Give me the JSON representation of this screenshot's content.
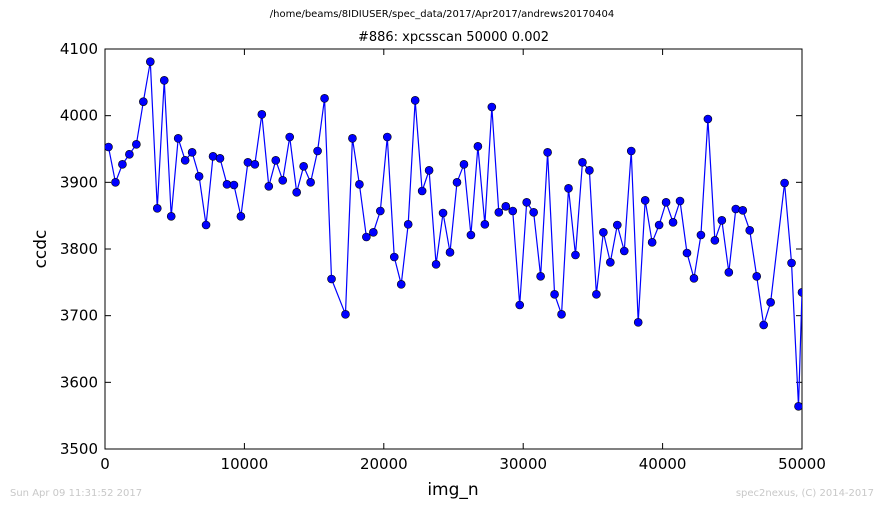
{
  "header": {
    "supertitle": "/home/beams/8IDIUSER/spec_data/2017/Apr2017/andrews20170404",
    "title": "#886: xpcsscan 50000 0.002"
  },
  "footer": {
    "timestamp": "Sun Apr 09 11:31:52 2017",
    "credit": "spec2nexus, (C) 2014-2017"
  },
  "colors": {
    "series": "#0000ff",
    "axes": "#000000",
    "footer": "#c8c8c8"
  },
  "chart_data": {
    "type": "line",
    "xlabel": "img_n",
    "ylabel": "ccdc",
    "xlim": [
      0,
      50000
    ],
    "ylim": [
      3500,
      4100
    ],
    "xticks": [
      0,
      10000,
      20000,
      30000,
      40000,
      50000
    ],
    "yticks": [
      3500,
      3600,
      3700,
      3800,
      3900,
      4000,
      4100
    ],
    "grid": false,
    "marker": "circle",
    "series": [
      {
        "x": [
          250,
          750,
          1250,
          1750,
          2250,
          2750,
          3250,
          3750,
          4250,
          4750,
          5250,
          5750,
          6250,
          6750,
          7250,
          7750,
          8250,
          8750,
          9250,
          9750,
          10250,
          10750,
          11250,
          11750,
          12250,
          12750,
          13250,
          13750,
          14250,
          14750,
          15250,
          15750,
          16250,
          17250,
          17750,
          18250,
          18750,
          19250,
          19750,
          20250,
          20750,
          21250,
          21750,
          22250,
          22750,
          23250,
          23750,
          24250,
          24750,
          25250,
          25750,
          26250,
          26750,
          27250,
          27750,
          28250,
          28750,
          29250,
          29750,
          30250,
          30750,
          31250,
          31750,
          32250,
          32750,
          33250,
          33750,
          34250,
          34750,
          35250,
          35750,
          36250,
          36750,
          37250,
          37750,
          38250,
          38750,
          39250,
          39750,
          40250,
          40750,
          41250,
          41750,
          42250,
          42750,
          43250,
          43750,
          44250,
          44750,
          45250,
          45750,
          46250,
          46750,
          47250,
          47750,
          48750,
          49250,
          49750,
          50000
        ],
        "y": [
          3953,
          3900,
          3927,
          3942,
          3957,
          4021,
          4081,
          3861,
          4053,
          3849,
          3966,
          3933,
          3945,
          3909,
          3836,
          3939,
          3936,
          3897,
          3896,
          3849,
          3930,
          3927,
          4002,
          3894,
          3933,
          3903,
          3968,
          3885,
          3924,
          3900,
          3947,
          4026,
          3755,
          3702,
          3966,
          3897,
          3818,
          3825,
          3857,
          3968,
          3788,
          3747,
          3837,
          4023,
          3887,
          3918,
          3777,
          3854,
          3795,
          3900,
          3927,
          3821,
          3954,
          3837,
          4013,
          3855,
          3864,
          3857,
          3716,
          3870,
          3855,
          3759,
          3945,
          3732,
          3702,
          3891,
          3791,
          3930,
          3918,
          3732,
          3825,
          3780,
          3836,
          3797,
          3947,
          3690,
          3873,
          3810,
          3836,
          3870,
          3840,
          3872,
          3794,
          3756,
          3821,
          3995,
          3813,
          3843,
          3765,
          3860,
          3858,
          3828,
          3759,
          3686,
          3720,
          3899,
          3779,
          3564,
          3735
        ]
      }
    ]
  }
}
